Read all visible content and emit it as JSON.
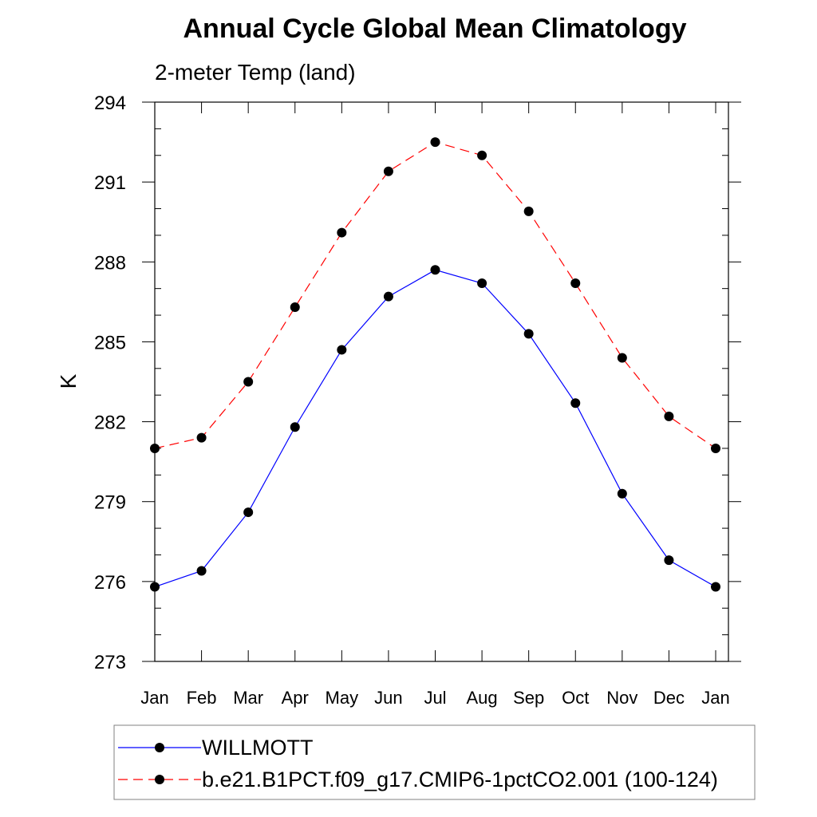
{
  "chart_data": {
    "type": "line",
    "title": "Annual Cycle Global Mean Climatology",
    "subtitle": "2-meter Temp (land)",
    "xlabel": "",
    "ylabel": "K",
    "categories": [
      "Jan",
      "Feb",
      "Mar",
      "Apr",
      "May",
      "Jun",
      "Jul",
      "Aug",
      "Sep",
      "Oct",
      "Nov",
      "Dec",
      "Jan"
    ],
    "ylim": [
      273,
      294
    ],
    "yticks": [
      273,
      276,
      279,
      282,
      285,
      288,
      291,
      294
    ],
    "grid": false,
    "legend_position": "bottom",
    "series": [
      {
        "name": "WILLMOTT",
        "color": "#0000ff",
        "dash": "solid",
        "marker": "circle",
        "values": [
          275.8,
          276.4,
          278.6,
          281.8,
          284.7,
          286.7,
          287.7,
          287.2,
          285.3,
          282.7,
          279.3,
          276.8,
          275.8
        ]
      },
      {
        "name": "b.e21.B1PCT.f09_g17.CMIP6-1pctCO2.001 (100-124)",
        "color": "#ff0000",
        "dash": "dashed",
        "marker": "circle",
        "values": [
          281.0,
          281.4,
          283.5,
          286.3,
          289.1,
          291.4,
          292.5,
          292.0,
          289.9,
          287.2,
          284.4,
          282.2,
          281.0
        ]
      }
    ]
  }
}
